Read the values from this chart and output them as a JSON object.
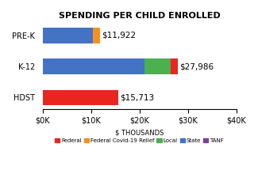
{
  "title": "SPENDING PER CHILD ENROLLED",
  "categories": [
    "HDST",
    "K-12",
    "PRE-K"
  ],
  "segments": {
    "State": [
      0,
      20986,
      10400
    ],
    "Federal Covid-19 Relief": [
      0,
      0,
      1422
    ],
    "Local": [
      0,
      5500,
      0
    ],
    "Federal": [
      15713,
      1500,
      100
    ],
    "TANF": [
      0,
      0,
      0
    ]
  },
  "colors": {
    "Federal": "#e8251f",
    "Federal Covid-19 Relief": "#f5921e",
    "Local": "#4caf50",
    "State": "#4472c4",
    "TANF": "#7b3f9e"
  },
  "totals": [
    15713,
    27986,
    11922
  ],
  "labels": [
    "$15,713",
    "$27,986",
    "$11,922"
  ],
  "xlabel": "$ THOUSANDS",
  "xlim": [
    0,
    40000
  ],
  "xticks": [
    0,
    10000,
    20000,
    30000,
    40000
  ],
  "xticklabels": [
    "$0K",
    "$10K",
    "$20K",
    "$30K",
    "$40K"
  ],
  "bar_height": 0.5,
  "background_color": "#ffffff",
  "title_fontsize": 8,
  "label_fontsize": 7.5,
  "tick_fontsize": 7,
  "xlabel_fontsize": 6
}
